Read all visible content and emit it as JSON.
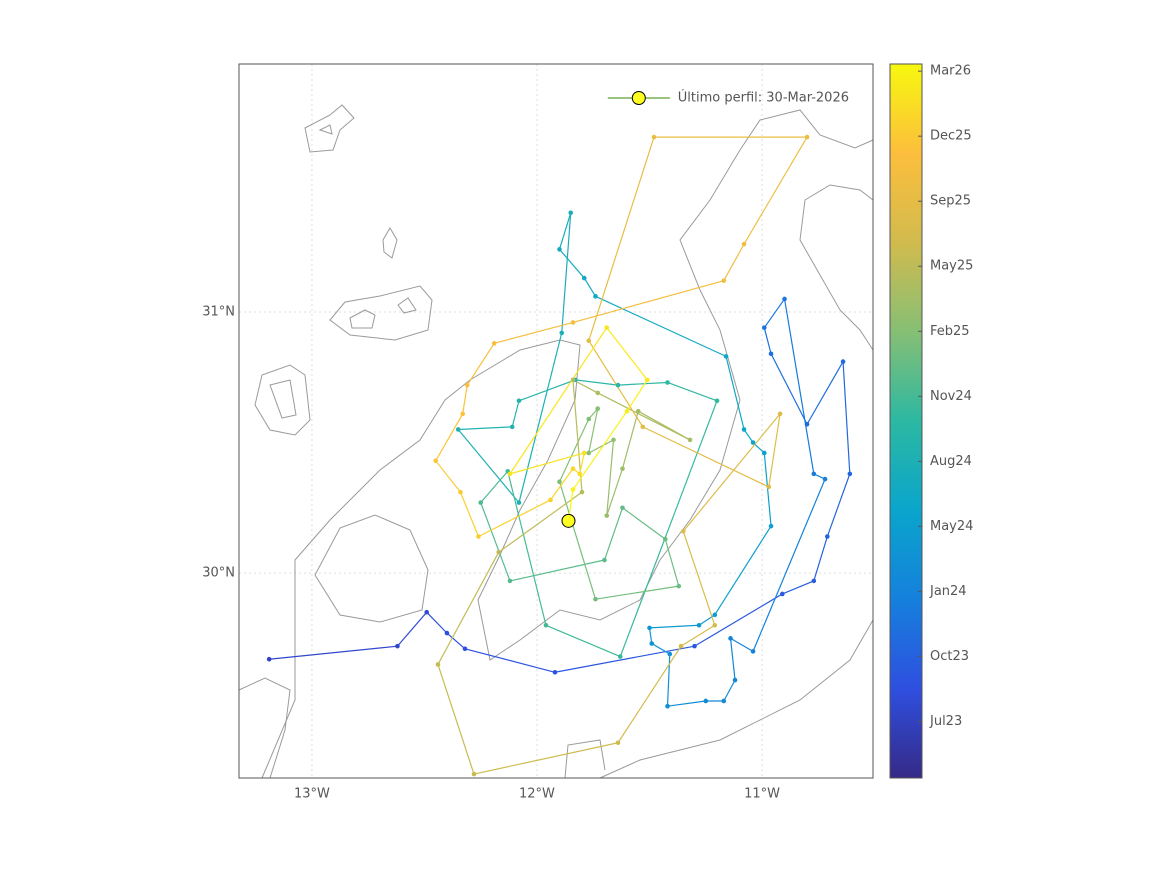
{
  "chart_data": {
    "type": "trajectory",
    "lon": [
      -13.19,
      -12.62,
      -12.49,
      -12.4,
      -12.32,
      -11.92,
      -11.3,
      -10.91,
      -10.77,
      -10.71,
      -10.61,
      -10.64,
      -10.8,
      -10.96,
      -10.99,
      -10.9,
      -10.77,
      -10.72,
      -11.04,
      -11.14,
      -11.12,
      -11.17,
      -11.25,
      -11.42,
      -11.41,
      -11.49,
      -11.5,
      -11.28,
      -11.21,
      -10.96,
      -10.99,
      -11.04,
      -11.08,
      -11.16,
      -11.74,
      -11.79,
      -11.9,
      -11.85,
      -11.89,
      -12.08,
      -12.35,
      -12.11,
      -12.08,
      -11.83,
      -11.64,
      -11.42,
      -11.2,
      -11.63,
      -11.96,
      -12.13,
      -12.25,
      -12.12,
      -11.7,
      -11.62,
      -11.43,
      -11.37,
      -11.74,
      -11.9,
      -11.77,
      -11.73,
      -11.77,
      -11.66,
      -11.69,
      -11.62,
      -11.55,
      -11.32,
      -11.73,
      -11.84,
      -11.8,
      -12.17,
      -12.44,
      -12.28,
      -11.64,
      -11.36,
      -11.21,
      -11.35,
      -10.92,
      -10.97,
      -11.53,
      -11.77,
      -11.48,
      -10.8,
      -11.08,
      -11.17,
      -11.84,
      -12.19,
      -12.31,
      -12.33,
      -12.45,
      -12.34,
      -12.26,
      -11.94,
      -11.84,
      -11.81,
      -11.79,
      -12.12,
      -11.69,
      -11.51,
      -11.6,
      -11.84,
      -11.86
    ],
    "lat": [
      29.67,
      29.72,
      29.85,
      29.77,
      29.71,
      29.62,
      29.72,
      29.92,
      29.97,
      30.14,
      30.38,
      30.81,
      30.57,
      30.84,
      30.94,
      31.05,
      30.38,
      30.36,
      29.7,
      29.75,
      29.59,
      29.51,
      29.51,
      29.49,
      29.69,
      29.73,
      29.79,
      29.8,
      29.84,
      30.18,
      30.46,
      30.5,
      30.55,
      30.83,
      31.06,
      31.13,
      31.24,
      31.38,
      30.92,
      30.27,
      30.55,
      30.56,
      30.66,
      30.74,
      30.72,
      30.73,
      30.66,
      29.68,
      29.8,
      30.39,
      30.27,
      29.97,
      30.05,
      30.25,
      30.13,
      29.95,
      29.9,
      30.35,
      30.59,
      30.63,
      30.46,
      30.51,
      30.22,
      30.4,
      30.62,
      30.51,
      30.69,
      30.74,
      30.31,
      30.08,
      29.65,
      29.23,
      29.35,
      29.72,
      29.8,
      30.16,
      30.61,
      30.33,
      30.56,
      30.89,
      31.67,
      31.67,
      31.26,
      31.12,
      30.96,
      30.88,
      30.72,
      30.61,
      30.43,
      30.31,
      30.14,
      30.28,
      30.4,
      30.38,
      30.46,
      30.38,
      30.94,
      30.74,
      30.62,
      30.32,
      30.2
    ],
    "dates": [
      "2023-07-04",
      "2023-07-14",
      "2023-07-24",
      "2023-08-03",
      "2023-08-13",
      "2023-08-23",
      "2023-09-02",
      "2023-09-12",
      "2023-09-22",
      "2023-10-02",
      "2023-10-12",
      "2023-10-22",
      "2023-11-01",
      "2023-11-11",
      "2023-11-21",
      "2023-12-01",
      "2023-12-11",
      "2023-12-21",
      "2023-12-31",
      "2024-01-10",
      "2024-01-20",
      "2024-01-30",
      "2024-02-09",
      "2024-02-19",
      "2024-02-29",
      "2024-03-10",
      "2024-03-20",
      "2024-03-30",
      "2024-04-09",
      "2024-04-19",
      "2024-04-29",
      "2024-05-09",
      "2024-05-19",
      "2024-05-29",
      "2024-06-08",
      "2024-06-18",
      "2024-06-28",
      "2024-07-08",
      "2024-07-18",
      "2024-07-28",
      "2024-08-07",
      "2024-08-17",
      "2024-08-27",
      "2024-09-06",
      "2024-09-16",
      "2024-09-26",
      "2024-10-06",
      "2024-10-16",
      "2024-10-26",
      "2024-11-05",
      "2024-11-15",
      "2024-11-25",
      "2024-12-05",
      "2024-12-15",
      "2024-12-25",
      "2025-01-04",
      "2025-01-14",
      "2025-01-24",
      "2025-02-03",
      "2025-02-13",
      "2025-02-23",
      "2025-03-05",
      "2025-03-15",
      "2025-03-25",
      "2025-04-04",
      "2025-04-14",
      "2025-04-24",
      "2025-05-04",
      "2025-05-14",
      "2025-05-24",
      "2025-06-03",
      "2025-06-13",
      "2025-06-23",
      "2025-07-03",
      "2025-07-13",
      "2025-07-23",
      "2025-08-02",
      "2025-08-12",
      "2025-08-22",
      "2025-09-01",
      "2025-09-11",
      "2025-09-21",
      "2025-10-01",
      "2025-10-11",
      "2025-10-21",
      "2025-10-31",
      "2025-11-10",
      "2025-11-20",
      "2025-11-30",
      "2025-12-10",
      "2025-12-20",
      "2025-12-30",
      "2026-01-09",
      "2026-01-19",
      "2026-01-29",
      "2026-02-08",
      "2026-02-18",
      "2026-02-28",
      "2026-03-10",
      "2026-03-20",
      "2026-03-30"
    ],
    "xlim": [
      -13.324,
      -10.507
    ],
    "ylim": [
      29.215,
      31.95
    ],
    "xticks": [
      {
        "value": -13,
        "label": "13°W"
      },
      {
        "value": -12,
        "label": "12°W"
      },
      {
        "value": -11,
        "label": "11°W"
      }
    ],
    "yticks": [
      {
        "value": 30,
        "label": "30°N"
      },
      {
        "value": 31,
        "label": "31°N"
      }
    ],
    "grid": true,
    "colorscale": [
      "#352a87",
      "#2f4fe0",
      "#1580dc",
      "#0aa5cc",
      "#2cb8a2",
      "#86bf74",
      "#d1bb4e",
      "#fcbe3c",
      "#f7f80f"
    ],
    "colorbar": {
      "clim": [
        "2023-03-28",
        "2026-03-30"
      ],
      "ticks": [
        {
          "value": "2023-06-23",
          "label": "Jul23"
        },
        {
          "value": "2023-10-01",
          "label": "Oct23"
        },
        {
          "value": "2024-01-09",
          "label": "Jan24"
        },
        {
          "value": "2024-04-18",
          "label": "May24"
        },
        {
          "value": "2024-07-27",
          "label": "Aug24"
        },
        {
          "value": "2024-11-04",
          "label": "Nov24"
        },
        {
          "value": "2025-02-12",
          "label": "Feb25"
        },
        {
          "value": "2025-05-23",
          "label": "May25"
        },
        {
          "value": "2025-08-31",
          "label": "Sep25"
        },
        {
          "value": "2025-12-09",
          "label": "Dec25"
        },
        {
          "value": "2026-03-19",
          "label": "Mar26"
        }
      ]
    },
    "last_profile": {
      "label": "Último perfil: 30-Mar-2026",
      "color": "#ffff22",
      "line_color": "#5aa02c"
    },
    "legend_position": "upper right"
  }
}
